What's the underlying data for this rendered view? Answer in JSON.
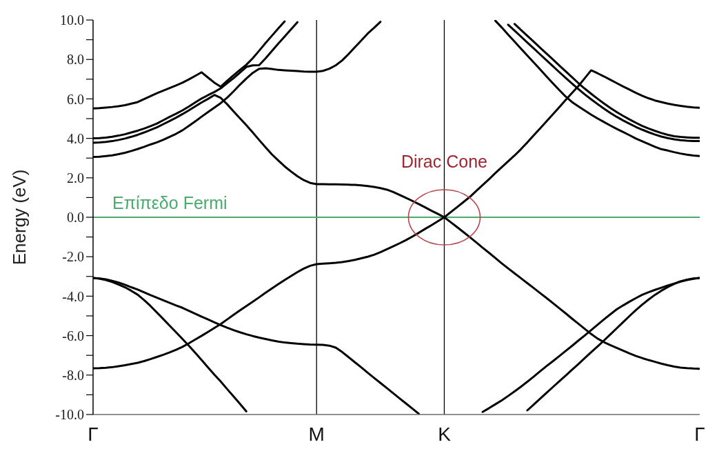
{
  "chart_data": {
    "type": "line",
    "ylabel": "Energy (eV)",
    "categories": [
      "Γ",
      null,
      null,
      null,
      null,
      null,
      null,
      null,
      null,
      null,
      null,
      null,
      null,
      null,
      null,
      null,
      null,
      null,
      null,
      null,
      null,
      null,
      null,
      null,
      null,
      null,
      null,
      null,
      null,
      null,
      null,
      null,
      null,
      null,
      null,
      "M",
      null,
      null,
      null,
      null,
      null,
      null,
      null,
      null,
      null,
      null,
      null,
      null,
      null,
      null,
      null,
      null,
      null,
      null,
      null,
      "K",
      null,
      null,
      null,
      null,
      null,
      null,
      null,
      null,
      null,
      null,
      null,
      null,
      null,
      null,
      null,
      null,
      null,
      null,
      null,
      null,
      null,
      null,
      null,
      null,
      null,
      null,
      null,
      null,
      null,
      null,
      null,
      null,
      null,
      null,
      null,
      null,
      null,
      null,
      null,
      "Γ"
    ],
    "ylim": [
      -10,
      10
    ],
    "yticks": [
      {
        "value": -10,
        "label": "-10.0"
      },
      {
        "value": -9,
        "label": null
      },
      {
        "value": -8,
        "label": "-8.0"
      },
      {
        "value": -7,
        "label": null
      },
      {
        "value": -6,
        "label": "-6.0"
      },
      {
        "value": -5,
        "label": null
      },
      {
        "value": -4,
        "label": "-4.0"
      },
      {
        "value": -3,
        "label": null
      },
      {
        "value": -2,
        "label": "-2.0"
      },
      {
        "value": -1,
        "label": null
      },
      {
        "value": 0,
        "label": "0.0"
      },
      {
        "value": 1,
        "label": null
      },
      {
        "value": 2,
        "label": "2.0"
      },
      {
        "value": 3,
        "label": null
      },
      {
        "value": 4,
        "label": "4.0"
      },
      {
        "value": 5,
        "label": null
      },
      {
        "value": 6,
        "label": "6.0"
      },
      {
        "value": 7,
        "label": null
      },
      {
        "value": 8,
        "label": "8.0"
      },
      {
        "value": 9,
        "label": null
      },
      {
        "value": 10,
        "label": "10.0"
      }
    ],
    "ref_lines": [
      {
        "axis": "x",
        "value": "M",
        "color": "#000000"
      },
      {
        "axis": "x",
        "value": "K",
        "color": "#000000"
      },
      {
        "axis": "y",
        "value": 0,
        "label": "Επίπεδο Fermi",
        "color": "#4aab6d"
      }
    ],
    "annotations": [
      {
        "text": "Dirac Cone",
        "x": "K",
        "y": 0
      }
    ],
    "series": [
      {
        "color": "#000000",
        "values": [
          -7.66,
          -7.65,
          -7.63,
          -7.6,
          -7.55,
          -7.5,
          -7.44,
          -7.38,
          -7.29,
          -7.19,
          -7.08,
          -6.97,
          -6.85,
          -6.72,
          -6.57,
          -6.39,
          -6.2,
          -6.01,
          -5.81,
          -5.61,
          -5.41,
          -5.18,
          -4.95,
          -4.72,
          -4.5,
          -4.28,
          -4.06,
          -3.83,
          -3.61,
          -3.39,
          -3.18,
          -2.98,
          -2.78,
          -2.6,
          -2.46,
          -2.38,
          -2.35,
          -2.33,
          -2.31,
          -2.27,
          -2.22,
          -2.16,
          -2.08,
          -2.0,
          -1.9,
          -1.77,
          -1.62,
          -1.47,
          -1.32,
          -1.16,
          -0.98,
          -0.79,
          -0.59,
          -0.4,
          -0.2,
          0,
          0.26,
          0.51,
          0.77,
          1.03,
          1.33,
          1.63,
          1.93,
          2.24,
          2.54,
          2.84,
          3.13,
          3.45,
          3.79,
          4.15,
          4.5,
          4.86,
          5.22,
          5.58,
          5.94,
          6.3,
          6.65,
          7.05,
          7.45,
          7.3,
          7.14,
          6.97,
          6.8,
          6.63,
          6.47,
          6.31,
          6.16,
          6.03,
          5.92,
          5.84,
          5.76,
          5.7,
          5.65,
          5.6,
          5.57,
          5.55
        ]
      },
      {
        "color": "#000000",
        "values": [
          5.52,
          5.53,
          5.56,
          5.59,
          5.63,
          5.68,
          5.76,
          5.84,
          5.99,
          6.14,
          6.29,
          6.42,
          6.55,
          6.68,
          6.82,
          6.99,
          7.17,
          7.35,
          7.08,
          6.82,
          6.62,
          6.92,
          7.2,
          7.47,
          7.73,
          8.06,
          8.44,
          8.83,
          9.2,
          9.57,
          9.93,
          null,
          null,
          null,
          null,
          null,
          null,
          null,
          null,
          null,
          null,
          null,
          null,
          null,
          null,
          null,
          null,
          null,
          null,
          null,
          null,
          null,
          null,
          null,
          null,
          null,
          null,
          null,
          null,
          null,
          null,
          null,
          null,
          null,
          null,
          null,
          null,
          null,
          null,
          null,
          null,
          null,
          null,
          null,
          null,
          null,
          null,
          null,
          null,
          null,
          null,
          null,
          null,
          null,
          null,
          null,
          null,
          null,
          null,
          null,
          null,
          null,
          null,
          null,
          null,
          null
        ]
      },
      {
        "color": "#000000",
        "values": [
          4.0,
          4.01,
          4.04,
          4.08,
          4.14,
          4.21,
          4.3,
          4.39,
          4.5,
          4.62,
          4.75,
          4.92,
          5.09,
          5.25,
          5.42,
          5.61,
          5.82,
          6.02,
          6.19,
          6.35,
          6.54,
          6.8,
          7.05,
          7.33,
          7.62,
          7.7,
          7.71,
          8.05,
          8.43,
          8.8,
          9.16,
          9.53,
          9.89,
          null,
          null,
          null,
          null,
          null,
          null,
          null,
          null,
          null,
          null,
          null,
          null,
          null,
          null,
          null,
          null,
          null,
          null,
          null,
          null,
          null,
          null,
          null,
          null,
          null,
          null,
          null,
          null,
          null,
          null,
          null,
          null,
          null,
          null,
          null,
          null,
          null,
          null,
          null,
          null,
          null,
          null,
          null,
          null,
          null,
          null,
          null,
          null,
          null,
          null,
          null,
          null,
          null,
          null,
          null,
          null,
          null,
          null,
          null,
          null,
          null,
          null,
          null
        ]
      },
      {
        "color": "#000000",
        "values": [
          3.78,
          3.79,
          3.82,
          3.86,
          3.92,
          3.99,
          4.08,
          4.18,
          4.3,
          4.43,
          4.56,
          4.72,
          4.88,
          5.05,
          5.23,
          5.42,
          5.62,
          5.82,
          6.0,
          6.2,
          6.05,
          5.73,
          5.37,
          5.02,
          4.67,
          4.3,
          3.92,
          3.55,
          3.19,
          2.88,
          2.58,
          2.32,
          2.08,
          1.88,
          1.74,
          1.68,
          1.68,
          1.67,
          1.67,
          1.66,
          1.65,
          1.64,
          1.62,
          1.58,
          1.54,
          1.48,
          1.4,
          1.28,
          1.13,
          0.98,
          0.83,
          0.67,
          0.5,
          0.33,
          0.17,
          0,
          -0.25,
          -0.5,
          -0.75,
          -1.01,
          -1.27,
          -1.54,
          -1.8,
          -2.07,
          -2.34,
          -2.59,
          -2.84,
          -3.09,
          -3.34,
          -3.59,
          -3.84,
          -4.09,
          -4.35,
          -4.61,
          -4.87,
          -5.14,
          -5.4,
          -5.66,
          -5.92,
          -6.15,
          -6.33,
          -6.48,
          -6.62,
          -6.76,
          -6.9,
          -7.03,
          -7.14,
          -7.24,
          -7.33,
          -7.42,
          -7.5,
          -7.57,
          -7.62,
          -7.65,
          -7.67,
          -7.68
        ]
      },
      {
        "color": "#000000",
        "values": [
          3.06,
          3.07,
          3.1,
          3.14,
          3.2,
          3.27,
          3.36,
          3.46,
          3.57,
          3.69,
          3.8,
          3.93,
          4.08,
          4.23,
          4.41,
          4.63,
          4.86,
          5.1,
          5.33,
          5.56,
          5.79,
          6.06,
          6.38,
          6.72,
          7.03,
          7.32,
          7.53,
          7.55,
          7.52,
          7.47,
          7.45,
          7.43,
          7.41,
          7.39,
          7.38,
          7.38,
          7.42,
          7.53,
          7.7,
          7.95,
          8.27,
          8.62,
          8.96,
          9.31,
          9.6,
          9.91,
          null,
          null,
          null,
          null,
          null,
          null,
          null,
          null,
          null,
          null,
          null,
          null,
          null,
          null,
          null,
          null,
          null,
          null,
          null,
          null,
          null,
          null,
          null,
          null,
          null,
          null,
          null,
          null,
          null,
          null,
          null,
          null,
          null,
          null,
          null,
          null,
          null,
          null,
          null,
          null,
          null,
          null,
          null,
          null,
          null,
          null,
          null,
          null,
          null,
          null
        ]
      },
      {
        "color": "#000000",
        "values": [
          null,
          null,
          null,
          null,
          null,
          null,
          null,
          null,
          null,
          null,
          null,
          null,
          null,
          null,
          null,
          null,
          null,
          null,
          null,
          null,
          null,
          null,
          null,
          null,
          null,
          null,
          null,
          null,
          null,
          null,
          null,
          null,
          null,
          null,
          null,
          null,
          null,
          null,
          null,
          null,
          null,
          null,
          null,
          null,
          null,
          null,
          null,
          null,
          null,
          null,
          null,
          null,
          null,
          null,
          null,
          null,
          null,
          null,
          null,
          null,
          null,
          null,
          null,
          9.96,
          9.62,
          9.26,
          8.91,
          8.55,
          8.2,
          7.85,
          7.5,
          7.14,
          6.79,
          6.45,
          6.12,
          5.84,
          5.62,
          5.41,
          5.2,
          5.01,
          4.83,
          4.65,
          4.48,
          4.32,
          4.16,
          3.99,
          3.85,
          3.71,
          3.57,
          3.45,
          3.38,
          3.3,
          3.23,
          3.17,
          3.13,
          3.1
        ]
      },
      {
        "color": "#000000",
        "values": [
          null,
          null,
          null,
          null,
          null,
          null,
          null,
          null,
          null,
          null,
          null,
          null,
          null,
          null,
          null,
          null,
          null,
          null,
          null,
          null,
          null,
          null,
          null,
          null,
          null,
          null,
          null,
          null,
          null,
          null,
          null,
          null,
          null,
          null,
          null,
          null,
          null,
          null,
          null,
          null,
          null,
          null,
          null,
          null,
          null,
          null,
          null,
          null,
          null,
          null,
          null,
          null,
          null,
          null,
          null,
          null,
          null,
          null,
          null,
          null,
          null,
          null,
          null,
          null,
          null,
          9.76,
          9.46,
          9.16,
          8.86,
          8.56,
          8.26,
          7.96,
          7.66,
          7.36,
          7.07,
          6.78,
          6.5,
          6.23,
          5.98,
          5.74,
          5.51,
          5.29,
          5.09,
          4.91,
          4.74,
          4.58,
          4.44,
          4.31,
          4.19,
          4.09,
          4.01,
          3.95,
          3.91,
          3.88,
          3.86,
          3.86
        ]
      },
      {
        "color": "#000000",
        "values": [
          null,
          null,
          null,
          null,
          null,
          null,
          null,
          null,
          null,
          null,
          null,
          null,
          null,
          null,
          null,
          null,
          null,
          null,
          null,
          null,
          null,
          null,
          null,
          null,
          null,
          null,
          null,
          null,
          null,
          null,
          null,
          null,
          null,
          null,
          null,
          null,
          null,
          null,
          null,
          null,
          null,
          null,
          null,
          null,
          null,
          null,
          null,
          null,
          null,
          null,
          null,
          null,
          null,
          null,
          null,
          null,
          null,
          null,
          null,
          null,
          null,
          null,
          null,
          null,
          null,
          null,
          9.8,
          9.5,
          9.2,
          8.9,
          8.6,
          8.3,
          8.0,
          7.7,
          7.4,
          7.1,
          6.8,
          6.52,
          6.26,
          6.01,
          5.77,
          5.54,
          5.33,
          5.14,
          4.96,
          4.79,
          4.63,
          4.5,
          4.38,
          4.27,
          4.18,
          4.11,
          4.07,
          4.05,
          4.03,
          4.03
        ]
      },
      {
        "color": "#000000",
        "values": [
          -3.08,
          -3.1,
          -3.15,
          -3.22,
          -3.31,
          -3.42,
          -3.55,
          -3.67,
          -3.81,
          -3.95,
          -4.08,
          -4.21,
          -4.34,
          -4.47,
          -4.59,
          -4.74,
          -4.89,
          -5.04,
          -5.18,
          -5.33,
          -5.47,
          -5.6,
          -5.72,
          -5.83,
          -5.93,
          -6.02,
          -6.1,
          -6.17,
          -6.24,
          -6.3,
          -6.35,
          -6.38,
          -6.41,
          -6.43,
          -6.45,
          -6.46,
          -6.47,
          -6.51,
          -6.61,
          -6.83,
          -7.09,
          -7.35,
          -7.61,
          -7.88,
          -8.14,
          -8.4,
          -8.66,
          -8.92,
          -9.18,
          -9.44,
          -9.7,
          -9.96,
          null,
          null,
          null,
          null,
          null,
          null,
          null,
          null,
          null,
          null,
          null,
          null,
          null,
          null,
          null,
          null,
          null,
          null,
          null,
          null,
          null,
          null,
          null,
          null,
          null,
          null,
          null,
          null,
          null,
          null,
          null,
          null,
          null,
          null,
          null,
          null,
          null,
          null,
          null,
          null,
          null,
          null,
          null,
          null
        ]
      },
      {
        "color": "#000000",
        "values": [
          -3.08,
          -3.11,
          -3.18,
          -3.28,
          -3.41,
          -3.55,
          -3.73,
          -3.93,
          -4.2,
          -4.5,
          -4.83,
          -5.16,
          -5.5,
          -5.83,
          -6.17,
          -6.51,
          -6.87,
          -7.24,
          -7.61,
          -7.98,
          -8.33,
          -8.71,
          -9.08,
          -9.46,
          -9.84,
          null,
          null,
          null,
          null,
          null,
          null,
          null,
          null,
          null,
          null,
          null,
          null,
          null,
          null,
          null,
          null,
          null,
          null,
          null,
          null,
          null,
          null,
          null,
          null,
          null,
          null,
          null,
          null,
          null,
          null,
          null,
          null,
          null,
          null,
          null,
          null,
          null,
          null,
          null,
          null,
          null,
          null,
          null,
          null,
          null,
          null,
          null,
          null,
          null,
          null,
          null,
          null,
          null,
          null,
          null,
          null,
          null,
          null,
          null,
          null,
          null,
          null,
          null,
          null,
          null,
          null,
          null,
          null,
          null,
          null,
          null
        ]
      },
      {
        "color": "#000000",
        "values": [
          null,
          null,
          null,
          null,
          null,
          null,
          null,
          null,
          null,
          null,
          null,
          null,
          null,
          null,
          null,
          null,
          null,
          null,
          null,
          null,
          null,
          null,
          null,
          null,
          null,
          null,
          null,
          null,
          null,
          null,
          null,
          null,
          null,
          null,
          null,
          null,
          null,
          null,
          null,
          null,
          null,
          null,
          null,
          null,
          null,
          null,
          null,
          null,
          null,
          null,
          null,
          null,
          null,
          null,
          null,
          null,
          null,
          null,
          null,
          null,
          null,
          -9.87,
          -9.68,
          -9.48,
          -9.28,
          -9.06,
          -8.83,
          -8.59,
          -8.34,
          -8.08,
          -7.81,
          -7.55,
          -7.3,
          -7.04,
          -6.78,
          -6.52,
          -6.25,
          -5.99,
          -5.72,
          -5.45,
          -5.18,
          -4.92,
          -4.67,
          -4.47,
          -4.28,
          -4.1,
          -3.93,
          -3.8,
          -3.68,
          -3.57,
          -3.46,
          -3.36,
          -3.26,
          -3.18,
          -3.12,
          -3.08
        ]
      },
      {
        "color": "#000000",
        "values": [
          null,
          null,
          null,
          null,
          null,
          null,
          null,
          null,
          null,
          null,
          null,
          null,
          null,
          null,
          null,
          null,
          null,
          null,
          null,
          null,
          null,
          null,
          null,
          null,
          null,
          null,
          null,
          null,
          null,
          null,
          null,
          null,
          null,
          null,
          null,
          null,
          null,
          null,
          null,
          null,
          null,
          null,
          null,
          null,
          null,
          null,
          null,
          null,
          null,
          null,
          null,
          null,
          null,
          null,
          null,
          null,
          null,
          null,
          null,
          null,
          null,
          null,
          null,
          null,
          null,
          null,
          null,
          null,
          -9.79,
          -9.5,
          -9.2,
          -8.9,
          -8.61,
          -8.32,
          -8.03,
          -7.73,
          -7.44,
          -7.14,
          -6.84,
          -6.55,
          -6.25,
          -5.94,
          -5.63,
          -5.32,
          -5.01,
          -4.71,
          -4.43,
          -4.17,
          -3.93,
          -3.72,
          -3.54,
          -3.38,
          -3.25,
          -3.16,
          -3.1,
          -3.08
        ]
      }
    ]
  }
}
